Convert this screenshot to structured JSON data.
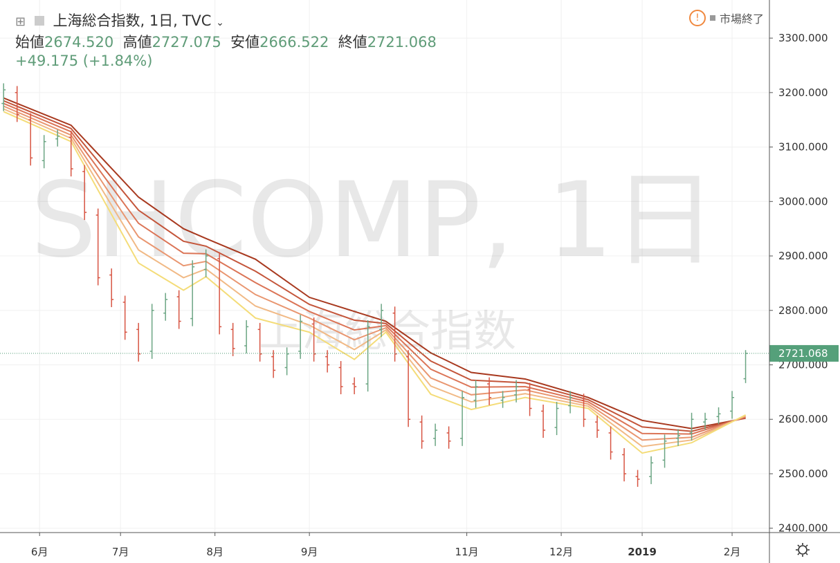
{
  "header": {
    "title": "上海総合指数, 1日, TVC",
    "open_label": "始値",
    "open": "2674.520",
    "high_label": "高値",
    "high": "2727.075",
    "low_label": "安値",
    "low": "2666.522",
    "close_label": "終値",
    "close": "2721.068",
    "change": "+49.175 (+1.84%)",
    "status": "市場終了"
  },
  "chart_data": {
    "type": "ohlc",
    "watermark": "SHCOMP, 1日",
    "watermark_sub": "上海総合指数",
    "up_color": "#6ba583",
    "down_color": "#d75442",
    "ylim": [
      2392,
      3370
    ],
    "xlim": [
      -0.8,
      170.3
    ],
    "grid": true,
    "yticks": [
      {
        "value": 2400,
        "label": "2400.000"
      },
      {
        "value": 2500,
        "label": "2500.000"
      },
      {
        "value": 2600,
        "label": "2600.000"
      },
      {
        "value": 2700,
        "label": "2700.000"
      },
      {
        "value": 2800,
        "label": "2800.000"
      },
      {
        "value": 2900,
        "label": "2900.000"
      },
      {
        "value": 3000,
        "label": "3000.000"
      },
      {
        "value": 3100,
        "label": "3100.000"
      },
      {
        "value": 3200,
        "label": "3200.000"
      },
      {
        "value": 3300,
        "label": "3300.000"
      }
    ],
    "xticks": [
      {
        "value": 8,
        "label": "6月"
      },
      {
        "value": 26,
        "label": "7月"
      },
      {
        "value": 47,
        "label": "8月"
      },
      {
        "value": 68,
        "label": "9月"
      },
      {
        "value": 103,
        "label": "11月"
      },
      {
        "value": 124,
        "label": "12月"
      },
      {
        "value": 142,
        "label": "2019",
        "bold": true
      },
      {
        "value": 162,
        "label": "2月"
      }
    ],
    "last_price": {
      "value": 2721.068,
      "label": "2721.068"
    },
    "ohlc": {
      "x": [
        0,
        3,
        6,
        9,
        12,
        15,
        18,
        21,
        24,
        27,
        30,
        33,
        36,
        39,
        42,
        45,
        48,
        51,
        54,
        57,
        60,
        63,
        66,
        69,
        72,
        75,
        78,
        81,
        84,
        87,
        90,
        93,
        96,
        99,
        102,
        105,
        108,
        111,
        114,
        117,
        120,
        123,
        126,
        129,
        132,
        135,
        138,
        141,
        144,
        147,
        150,
        153,
        156,
        159,
        162,
        165
      ],
      "open": [
        3180,
        3200,
        3150,
        3075,
        3115,
        3118,
        3055,
        2975,
        2865,
        2815,
        2765,
        2725,
        2795,
        2825,
        2785,
        2875,
        2895,
        2765,
        2735,
        2765,
        2715,
        2695,
        2725,
        2775,
        2715,
        2695,
        2665,
        2665,
        2765,
        2795,
        2715,
        2595,
        2565,
        2575,
        2565,
        2635,
        2665,
        2635,
        2645,
        2655,
        2615,
        2585,
        2625,
        2635,
        2595,
        2575,
        2535,
        2495,
        2495,
        2525,
        2565,
        2575,
        2595,
        2605,
        2615,
        2674.52
      ],
      "high": [
        3217,
        3212,
        3162,
        3122,
        3132,
        3130,
        3067,
        2987,
        2877,
        2827,
        2777,
        2812,
        2832,
        2837,
        2892,
        2912,
        2907,
        2777,
        2782,
        2777,
        2727,
        2732,
        2792,
        2787,
        2727,
        2707,
        2677,
        2782,
        2812,
        2807,
        2727,
        2607,
        2592,
        2587,
        2652,
        2672,
        2677,
        2652,
        2672,
        2667,
        2627,
        2632,
        2652,
        2647,
        2607,
        2587,
        2547,
        2507,
        2532,
        2572,
        2582,
        2612,
        2612,
        2622,
        2652,
        2727.075
      ],
      "low": [
        3166,
        3146,
        3066,
        3061,
        3101,
        3046,
        2966,
        2846,
        2806,
        2746,
        2706,
        2711,
        2781,
        2766,
        2771,
        2861,
        2756,
        2716,
        2721,
        2706,
        2676,
        2681,
        2711,
        2706,
        2686,
        2646,
        2646,
        2651,
        2751,
        2706,
        2586,
        2546,
        2551,
        2546,
        2551,
        2621,
        2626,
        2621,
        2631,
        2606,
        2566,
        2571,
        2611,
        2586,
        2566,
        2526,
        2486,
        2476,
        2481,
        2511,
        2551,
        2561,
        2581,
        2591,
        2601,
        2666.522
      ],
      "close": [
        3205,
        3160,
        3080,
        3110,
        3120,
        3060,
        2980,
        2860,
        2820,
        2760,
        2720,
        2800,
        2820,
        2780,
        2880,
        2900,
        2770,
        2730,
        2770,
        2720,
        2690,
        2720,
        2780,
        2720,
        2700,
        2660,
        2660,
        2770,
        2800,
        2720,
        2600,
        2560,
        2580,
        2560,
        2640,
        2660,
        2640,
        2640,
        2660,
        2620,
        2580,
        2620,
        2640,
        2600,
        2580,
        2540,
        2500,
        2490,
        2520,
        2560,
        2570,
        2600,
        2600,
        2610,
        2640,
        2721.068
      ]
    },
    "series": [
      {
        "color": "#a8391f",
        "x": [
          0,
          15,
          30,
          40,
          45,
          56,
          68,
          78,
          85,
          95,
          104,
          116,
          130,
          142,
          153,
          165
        ],
        "values": [
          3190,
          3140,
          3008,
          2950,
          2932,
          2894,
          2824,
          2798,
          2780,
          2722,
          2686,
          2674,
          2640,
          2598,
          2583,
          2602
        ]
      },
      {
        "color": "#c4553a",
        "x": [
          0,
          15,
          30,
          40,
          45,
          56,
          68,
          78,
          85,
          95,
          104,
          116,
          130,
          142,
          153,
          165
        ],
        "values": [
          3185,
          3134,
          2984,
          2927,
          2918,
          2872,
          2811,
          2782,
          2776,
          2707,
          2672,
          2667,
          2636,
          2586,
          2578,
          2603
        ]
      },
      {
        "color": "#db7456",
        "x": [
          0,
          15,
          30,
          40,
          45,
          56,
          68,
          78,
          85,
          95,
          104,
          116,
          130,
          142,
          153,
          165
        ],
        "values": [
          3180,
          3128,
          2960,
          2905,
          2904,
          2851,
          2798,
          2764,
          2772,
          2692,
          2659,
          2660,
          2632,
          2574,
          2573,
          2604
        ]
      },
      {
        "color": "#e99670",
        "x": [
          0,
          15,
          30,
          40,
          45,
          56,
          68,
          78,
          85,
          95,
          104,
          116,
          130,
          142,
          153,
          165
        ],
        "values": [
          3175,
          3122,
          2935,
          2882,
          2890,
          2829,
          2786,
          2746,
          2768,
          2676,
          2645,
          2654,
          2628,
          2562,
          2567,
          2606
        ]
      },
      {
        "color": "#f1b985",
        "x": [
          0,
          15,
          30,
          40,
          45,
          56,
          68,
          78,
          85,
          95,
          104,
          116,
          130,
          142,
          153,
          165
        ],
        "values": [
          3170,
          3116,
          2911,
          2860,
          2876,
          2808,
          2773,
          2728,
          2764,
          2661,
          2632,
          2647,
          2624,
          2550,
          2562,
          2607
        ]
      },
      {
        "color": "#f4dc78",
        "x": [
          0,
          15,
          30,
          40,
          45,
          56,
          68,
          78,
          85,
          95,
          104,
          116,
          130,
          142,
          153,
          165
        ],
        "values": [
          3165,
          3110,
          2887,
          2837,
          2862,
          2786,
          2760,
          2710,
          2760,
          2646,
          2618,
          2640,
          2620,
          2538,
          2557,
          2608
        ]
      }
    ]
  }
}
